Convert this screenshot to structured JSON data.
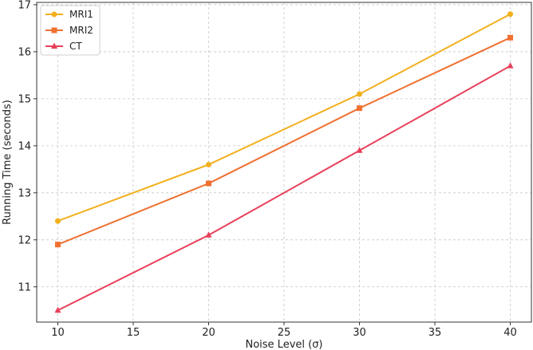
{
  "chart_data": {
    "type": "line",
    "title": "",
    "xlabel": "Noise Level (σ)",
    "ylabel": "Running Time (seconds)",
    "x": [
      10,
      20,
      30,
      40
    ],
    "xlim": [
      8.6,
      41.4
    ],
    "ylim": [
      10.25,
      17.05
    ],
    "xticks": [
      10,
      15,
      20,
      25,
      30,
      35,
      40
    ],
    "yticks": [
      11,
      12,
      13,
      14,
      15,
      16,
      17
    ],
    "grid": true,
    "legend_position": "top-left",
    "series": [
      {
        "name": "MRI1",
        "values": [
          12.4,
          13.6,
          15.1,
          16.8
        ],
        "color": "#f2b01e",
        "marker": "circle"
      },
      {
        "name": "MRI2",
        "values": [
          11.9,
          13.2,
          14.8,
          16.3
        ],
        "color": "#f07030",
        "marker": "square"
      },
      {
        "name": "CT",
        "values": [
          10.5,
          12.1,
          13.9,
          15.7
        ],
        "color": "#e8405a",
        "marker": "triangle"
      }
    ]
  }
}
